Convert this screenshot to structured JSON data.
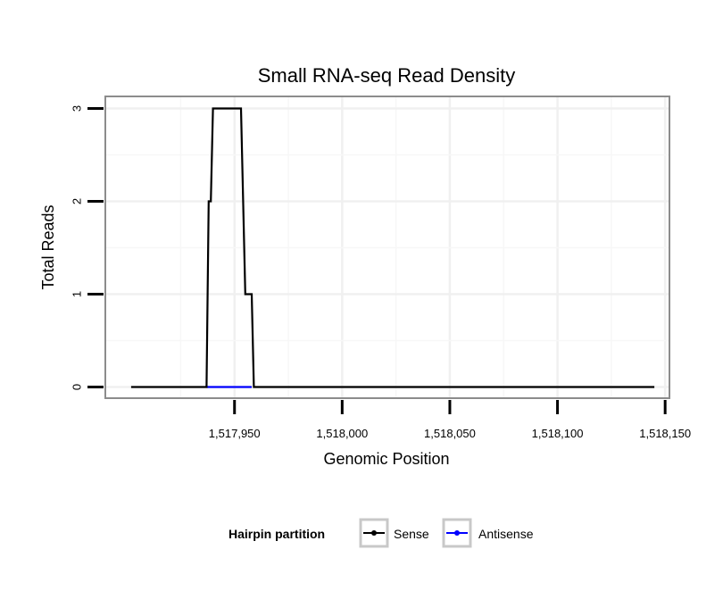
{
  "chart_data": {
    "type": "line",
    "title": "Small RNA-seq Read Density",
    "xlabel": "Genomic Position",
    "ylabel": "Total Reads",
    "xlim": [
      1517890,
      1518152
    ],
    "ylim": [
      -0.12,
      3.13
    ],
    "x_ticks": [
      1517950,
      1518000,
      1518050,
      1518100,
      1518150
    ],
    "x_tick_labels": [
      "1,517,950",
      "1,518,000",
      "1,518,050",
      "1,518,100",
      "1,518,150"
    ],
    "y_ticks": [
      0,
      1,
      2,
      3
    ],
    "y_tick_labels": [
      "0",
      "1",
      "2",
      "3"
    ],
    "grid": true,
    "legend": {
      "title": "Hairpin partition",
      "position": "bottom"
    },
    "series": [
      {
        "name": "Sense",
        "color": "#000000",
        "points": [
          [
            1517902,
            0
          ],
          [
            1517937,
            0
          ],
          [
            1517938,
            2
          ],
          [
            1517939,
            2
          ],
          [
            1517940,
            3
          ],
          [
            1517953,
            3
          ],
          [
            1517955,
            1
          ],
          [
            1517958,
            1
          ],
          [
            1517959,
            0
          ],
          [
            1518145,
            0
          ]
        ]
      },
      {
        "name": "Antisense",
        "color": "#0000ff",
        "points": [
          [
            1517937,
            0
          ],
          [
            1517958,
            0
          ]
        ]
      }
    ]
  }
}
